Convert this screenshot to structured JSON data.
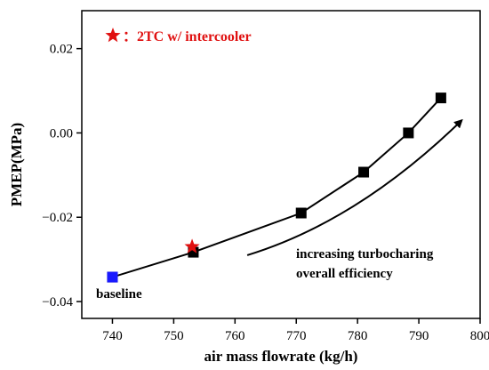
{
  "chart_data": {
    "type": "line",
    "xlabel": "air mass flowrate (kg/h)",
    "ylabel": "PMEP(MPa)",
    "xlim": [
      735,
      800
    ],
    "ylim": [
      -0.044,
      0.029
    ],
    "xticks": [
      740,
      750,
      760,
      770,
      780,
      790,
      800
    ],
    "yticks": [
      -0.04,
      -0.02,
      0.0,
      0.02
    ],
    "xtick_labels": [
      "740",
      "750",
      "760",
      "770",
      "780",
      "790",
      "800"
    ],
    "ytick_labels": [
      "−0.04",
      "−0.02",
      "0.00",
      "0.02"
    ],
    "grid": false,
    "series": [
      {
        "name": "",
        "marker": "square",
        "color": "#000000",
        "x": [
          740.0,
          753.2,
          770.8,
          781.0,
          788.3,
          793.6
        ],
        "y": [
          -0.0342,
          -0.0283,
          -0.019,
          -0.0093,
          0.0,
          0.0083
        ]
      }
    ],
    "highlight_points": [
      {
        "label": "baseline",
        "x": 740.0,
        "y": -0.0342,
        "marker": "square",
        "color": "#1a1aff"
      },
      {
        "label": "2TC w/ intercooler",
        "x": 753.0,
        "y": -0.027,
        "marker": "star",
        "color": "#e01010"
      }
    ],
    "legend": {
      "position": "top-left",
      "entries": [
        {
          "marker": "star",
          "color": "#e01010",
          "label": "：2TC w/ intercooler"
        }
      ]
    },
    "annotations": {
      "baseline_label": "baseline",
      "trend_line1": "increasing turbocharing",
      "trend_line2": "overall efficiency"
    },
    "trend_arrow": {
      "from": [
        762.0,
        -0.029
      ],
      "control": [
        780.0,
        -0.021
      ],
      "to": [
        797.0,
        0.003
      ]
    }
  }
}
